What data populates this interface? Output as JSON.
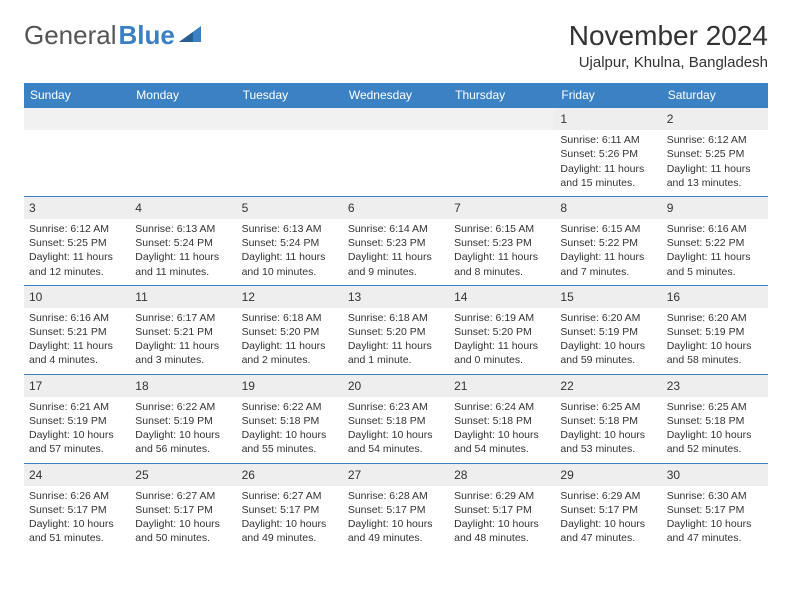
{
  "logo": {
    "word1": "General",
    "word2": "Blue"
  },
  "title": "November 2024",
  "location": "Ujalpur, Khulna, Bangladesh",
  "colors": {
    "header_bg": "#3b82c4",
    "header_text": "#ffffff",
    "daynum_bg": "#eeeeee",
    "border": "#3b7fc4",
    "text": "#333333",
    "logo_gray": "#555555",
    "logo_blue": "#3b7fc4"
  },
  "day_headers": [
    "Sunday",
    "Monday",
    "Tuesday",
    "Wednesday",
    "Thursday",
    "Friday",
    "Saturday"
  ],
  "weeks": [
    {
      "nums": [
        "",
        "",
        "",
        "",
        "",
        "1",
        "2"
      ],
      "cells": [
        null,
        null,
        null,
        null,
        null,
        {
          "sunrise": "Sunrise: 6:11 AM",
          "sunset": "Sunset: 5:26 PM",
          "day1": "Daylight: 11 hours",
          "day2": "and 15 minutes."
        },
        {
          "sunrise": "Sunrise: 6:12 AM",
          "sunset": "Sunset: 5:25 PM",
          "day1": "Daylight: 11 hours",
          "day2": "and 13 minutes."
        }
      ]
    },
    {
      "nums": [
        "3",
        "4",
        "5",
        "6",
        "7",
        "8",
        "9"
      ],
      "cells": [
        {
          "sunrise": "Sunrise: 6:12 AM",
          "sunset": "Sunset: 5:25 PM",
          "day1": "Daylight: 11 hours",
          "day2": "and 12 minutes."
        },
        {
          "sunrise": "Sunrise: 6:13 AM",
          "sunset": "Sunset: 5:24 PM",
          "day1": "Daylight: 11 hours",
          "day2": "and 11 minutes."
        },
        {
          "sunrise": "Sunrise: 6:13 AM",
          "sunset": "Sunset: 5:24 PM",
          "day1": "Daylight: 11 hours",
          "day2": "and 10 minutes."
        },
        {
          "sunrise": "Sunrise: 6:14 AM",
          "sunset": "Sunset: 5:23 PM",
          "day1": "Daylight: 11 hours",
          "day2": "and 9 minutes."
        },
        {
          "sunrise": "Sunrise: 6:15 AM",
          "sunset": "Sunset: 5:23 PM",
          "day1": "Daylight: 11 hours",
          "day2": "and 8 minutes."
        },
        {
          "sunrise": "Sunrise: 6:15 AM",
          "sunset": "Sunset: 5:22 PM",
          "day1": "Daylight: 11 hours",
          "day2": "and 7 minutes."
        },
        {
          "sunrise": "Sunrise: 6:16 AM",
          "sunset": "Sunset: 5:22 PM",
          "day1": "Daylight: 11 hours",
          "day2": "and 5 minutes."
        }
      ]
    },
    {
      "nums": [
        "10",
        "11",
        "12",
        "13",
        "14",
        "15",
        "16"
      ],
      "cells": [
        {
          "sunrise": "Sunrise: 6:16 AM",
          "sunset": "Sunset: 5:21 PM",
          "day1": "Daylight: 11 hours",
          "day2": "and 4 minutes."
        },
        {
          "sunrise": "Sunrise: 6:17 AM",
          "sunset": "Sunset: 5:21 PM",
          "day1": "Daylight: 11 hours",
          "day2": "and 3 minutes."
        },
        {
          "sunrise": "Sunrise: 6:18 AM",
          "sunset": "Sunset: 5:20 PM",
          "day1": "Daylight: 11 hours",
          "day2": "and 2 minutes."
        },
        {
          "sunrise": "Sunrise: 6:18 AM",
          "sunset": "Sunset: 5:20 PM",
          "day1": "Daylight: 11 hours",
          "day2": "and 1 minute."
        },
        {
          "sunrise": "Sunrise: 6:19 AM",
          "sunset": "Sunset: 5:20 PM",
          "day1": "Daylight: 11 hours",
          "day2": "and 0 minutes."
        },
        {
          "sunrise": "Sunrise: 6:20 AM",
          "sunset": "Sunset: 5:19 PM",
          "day1": "Daylight: 10 hours",
          "day2": "and 59 minutes."
        },
        {
          "sunrise": "Sunrise: 6:20 AM",
          "sunset": "Sunset: 5:19 PM",
          "day1": "Daylight: 10 hours",
          "day2": "and 58 minutes."
        }
      ]
    },
    {
      "nums": [
        "17",
        "18",
        "19",
        "20",
        "21",
        "22",
        "23"
      ],
      "cells": [
        {
          "sunrise": "Sunrise: 6:21 AM",
          "sunset": "Sunset: 5:19 PM",
          "day1": "Daylight: 10 hours",
          "day2": "and 57 minutes."
        },
        {
          "sunrise": "Sunrise: 6:22 AM",
          "sunset": "Sunset: 5:19 PM",
          "day1": "Daylight: 10 hours",
          "day2": "and 56 minutes."
        },
        {
          "sunrise": "Sunrise: 6:22 AM",
          "sunset": "Sunset: 5:18 PM",
          "day1": "Daylight: 10 hours",
          "day2": "and 55 minutes."
        },
        {
          "sunrise": "Sunrise: 6:23 AM",
          "sunset": "Sunset: 5:18 PM",
          "day1": "Daylight: 10 hours",
          "day2": "and 54 minutes."
        },
        {
          "sunrise": "Sunrise: 6:24 AM",
          "sunset": "Sunset: 5:18 PM",
          "day1": "Daylight: 10 hours",
          "day2": "and 54 minutes."
        },
        {
          "sunrise": "Sunrise: 6:25 AM",
          "sunset": "Sunset: 5:18 PM",
          "day1": "Daylight: 10 hours",
          "day2": "and 53 minutes."
        },
        {
          "sunrise": "Sunrise: 6:25 AM",
          "sunset": "Sunset: 5:18 PM",
          "day1": "Daylight: 10 hours",
          "day2": "and 52 minutes."
        }
      ]
    },
    {
      "nums": [
        "24",
        "25",
        "26",
        "27",
        "28",
        "29",
        "30"
      ],
      "cells": [
        {
          "sunrise": "Sunrise: 6:26 AM",
          "sunset": "Sunset: 5:17 PM",
          "day1": "Daylight: 10 hours",
          "day2": "and 51 minutes."
        },
        {
          "sunrise": "Sunrise: 6:27 AM",
          "sunset": "Sunset: 5:17 PM",
          "day1": "Daylight: 10 hours",
          "day2": "and 50 minutes."
        },
        {
          "sunrise": "Sunrise: 6:27 AM",
          "sunset": "Sunset: 5:17 PM",
          "day1": "Daylight: 10 hours",
          "day2": "and 49 minutes."
        },
        {
          "sunrise": "Sunrise: 6:28 AM",
          "sunset": "Sunset: 5:17 PM",
          "day1": "Daylight: 10 hours",
          "day2": "and 49 minutes."
        },
        {
          "sunrise": "Sunrise: 6:29 AM",
          "sunset": "Sunset: 5:17 PM",
          "day1": "Daylight: 10 hours",
          "day2": "and 48 minutes."
        },
        {
          "sunrise": "Sunrise: 6:29 AM",
          "sunset": "Sunset: 5:17 PM",
          "day1": "Daylight: 10 hours",
          "day2": "and 47 minutes."
        },
        {
          "sunrise": "Sunrise: 6:30 AM",
          "sunset": "Sunset: 5:17 PM",
          "day1": "Daylight: 10 hours",
          "day2": "and 47 minutes."
        }
      ]
    }
  ]
}
